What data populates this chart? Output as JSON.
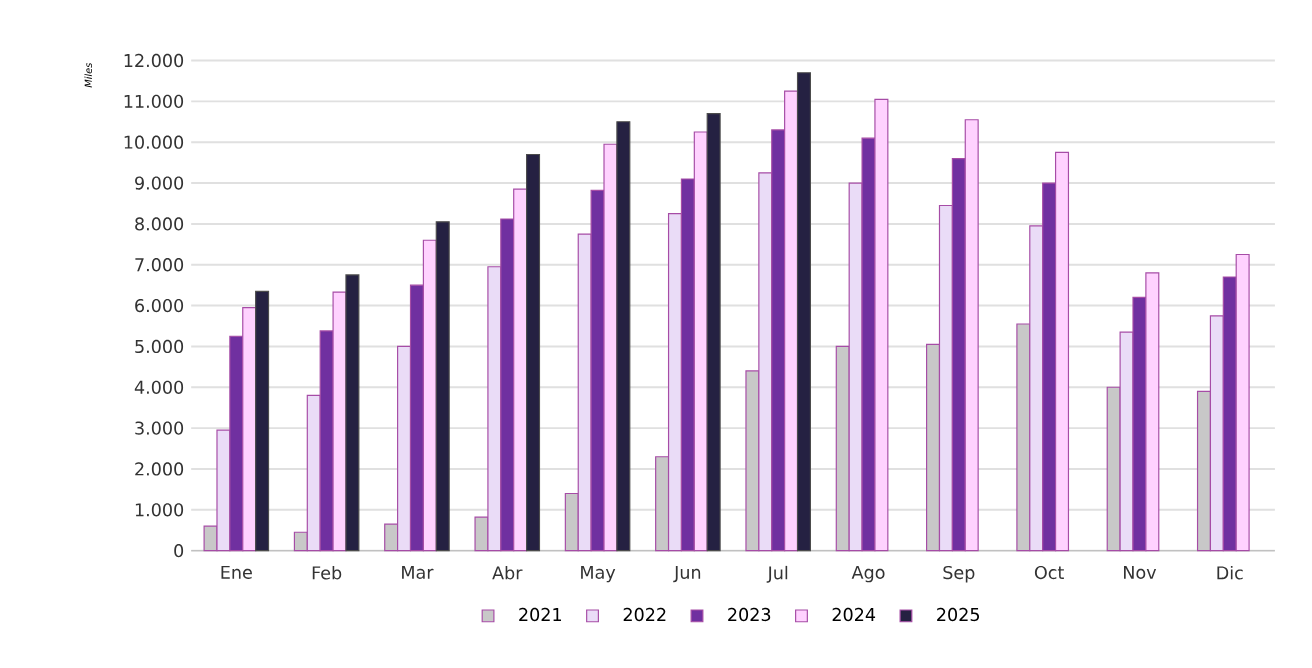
{
  "chart_data": {
    "type": "bar",
    "ylabel": "Miles",
    "categories": [
      "Ene",
      "Feb",
      "Mar",
      "Abr",
      "May",
      "Jun",
      "Jul",
      "Ago",
      "Sep",
      "Oct",
      "Nov",
      "Dic"
    ],
    "series": [
      {
        "name": "2021",
        "color": "#c8c8c8",
        "values": [
          600,
          450,
          650,
          820,
          1400,
          2300,
          4400,
          5000,
          5050,
          5550,
          4000,
          3900
        ]
      },
      {
        "name": "2022",
        "color": "#eadcf7",
        "values": [
          2950,
          3800,
          5000,
          6950,
          7750,
          8250,
          9250,
          9000,
          8450,
          7950,
          5350,
          5750
        ]
      },
      {
        "name": "2023",
        "color": "#7030a0",
        "values": [
          5250,
          5380,
          6500,
          8120,
          8820,
          9100,
          10300,
          10100,
          9600,
          9000,
          6200,
          6700
        ]
      },
      {
        "name": "2024",
        "color": "#ffd2ff",
        "values": [
          5950,
          6330,
          7600,
          8850,
          9950,
          10250,
          11250,
          11050,
          10550,
          9750,
          6800,
          7250
        ]
      },
      {
        "name": "2025",
        "color": "#252142",
        "values": [
          6350,
          6750,
          8050,
          9700,
          10500,
          10700,
          11700,
          null,
          null,
          null,
          null,
          null
        ]
      }
    ],
    "ylim": [
      0,
      12000
    ],
    "yticks": [
      {
        "value": 0,
        "label": "0"
      },
      {
        "value": 1000,
        "label": "1.000"
      },
      {
        "value": 2000,
        "label": "2.000"
      },
      {
        "value": 3000,
        "label": "3.000"
      },
      {
        "value": 4000,
        "label": "4.000"
      },
      {
        "value": 5000,
        "label": "5.000"
      },
      {
        "value": 6000,
        "label": "6.000"
      },
      {
        "value": 7000,
        "label": "7.000"
      },
      {
        "value": 8000,
        "label": "8.000"
      },
      {
        "value": 9000,
        "label": "9.000"
      },
      {
        "value": 10000,
        "label": "10.000"
      },
      {
        "value": 11000,
        "label": "11.000"
      },
      {
        "value": 12000,
        "label": "12.000"
      }
    ],
    "grid": "y",
    "legend": "bottom"
  }
}
